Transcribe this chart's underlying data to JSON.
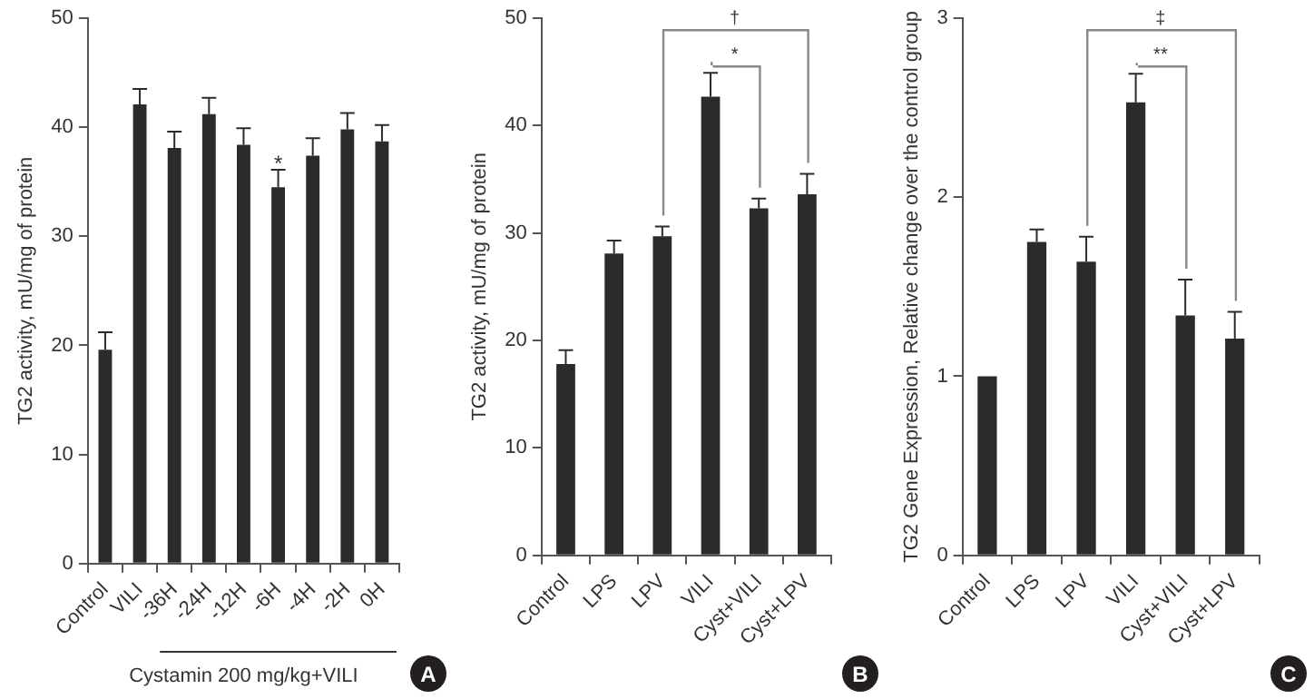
{
  "chart_data": [
    {
      "type": "bar",
      "ylabel": "TG2 activity, mU/mg of protein",
      "xlabel": "Cystamin 200 mg/kg+VILI",
      "categories": [
        "Control",
        "VILI",
        "-36H",
        "-24H",
        "-12H",
        "-6H",
        "-4H",
        "-2H",
        "0H"
      ],
      "values": [
        19.6,
        42.1,
        38.1,
        41.2,
        38.4,
        34.5,
        37.4,
        39.8,
        38.7
      ],
      "color": "#2b2b2e",
      "errors": [
        [
          19.6,
          21.2
        ],
        [
          42.1,
          43.5
        ],
        [
          38.1,
          39.6
        ],
        [
          41.2,
          42.7
        ],
        [
          38.4,
          39.9
        ],
        [
          34.5,
          36.1
        ],
        [
          37.4,
          39.0
        ],
        [
          39.8,
          41.3
        ],
        [
          38.7,
          40.2
        ]
      ],
      "ylim": [
        0,
        50
      ],
      "yticks": [
        0,
        10,
        20,
        30,
        40,
        50
      ],
      "grid": false,
      "legend": false,
      "annotations": [
        {
          "text": "*",
          "x": "-6H",
          "y": 36.6
        },
        "A"
      ]
    },
    {
      "type": "bar",
      "ylabel": "TG2 activity, mU/mg of protein",
      "categories": [
        "Control",
        "LPS",
        "LPV",
        "VILI",
        "Cyst+VILI",
        "Cyst+LPV"
      ],
      "values": [
        17.8,
        28.1,
        29.7,
        42.7,
        32.3,
        33.6
      ],
      "color": "#2b2b2e",
      "errors": [
        [
          17.8,
          19.1
        ],
        [
          28.1,
          29.3
        ],
        [
          29.7,
          30.6
        ],
        [
          42.7,
          44.9
        ],
        [
          32.3,
          33.2
        ],
        [
          33.6,
          35.5
        ]
      ],
      "ylim": [
        0,
        50
      ],
      "yticks": [
        0,
        10,
        20,
        30,
        40,
        50
      ],
      "grid": false,
      "legend": false,
      "annotations": [
        "†",
        "*",
        "B"
      ]
    },
    {
      "type": "bar",
      "ylabel": "TG2 Gene Expression, Relative change over the control group",
      "categories": [
        "Control",
        "LPS",
        "LPV",
        "VILI",
        "Cyst+VILI",
        "Cyst+LPV"
      ],
      "values": [
        1.0,
        1.75,
        1.64,
        2.53,
        1.34,
        1.21
      ],
      "color": "#2b2b2e",
      "errors": [
        null,
        [
          1.75,
          1.82
        ],
        [
          1.64,
          1.78
        ],
        [
          2.53,
          2.69
        ],
        [
          1.34,
          1.54
        ],
        [
          1.21,
          1.36
        ]
      ],
      "ylim": [
        0,
        3
      ],
      "yticks": [
        0,
        1,
        2,
        3
      ],
      "grid": false,
      "legend": false,
      "annotations": [
        "‡",
        "**",
        "C"
      ]
    }
  ]
}
